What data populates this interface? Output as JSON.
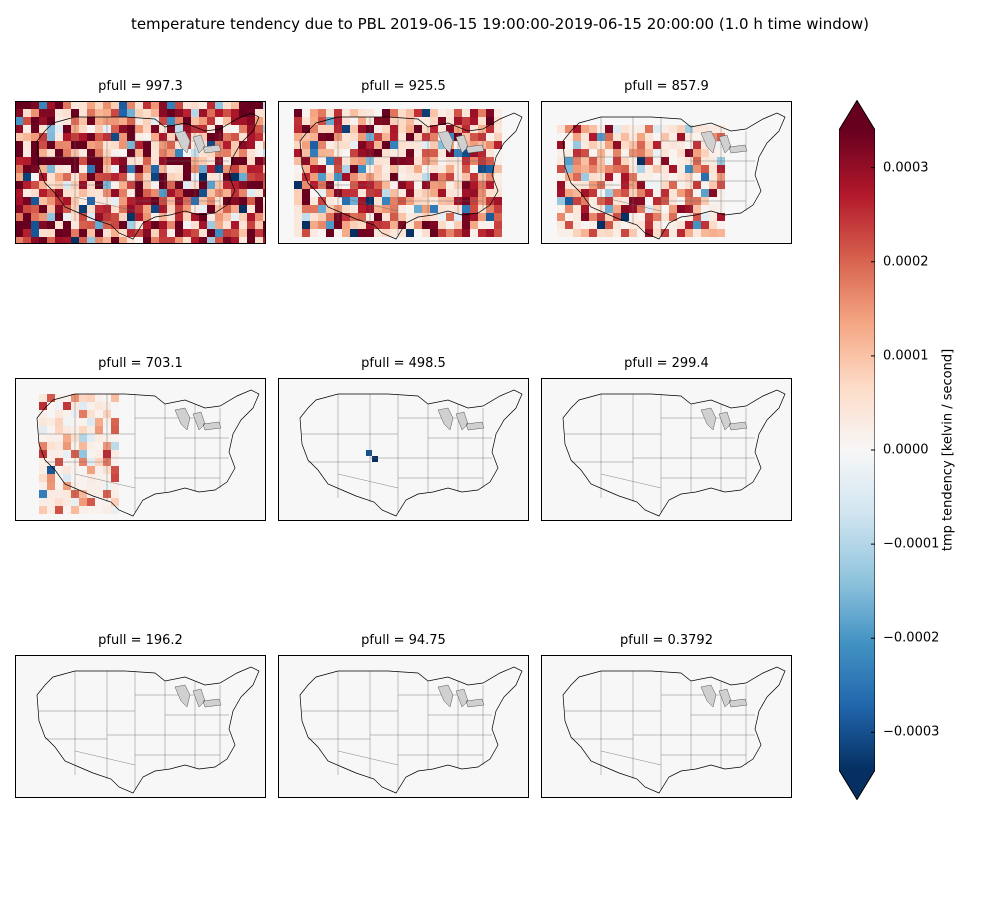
{
  "figure": {
    "title": "temperature tendency due to PBL 2019-06-15 19:00:00-2019-06-15 20:00:00 (1.0 h time window)"
  },
  "chart_data": {
    "type": "heatmap",
    "title": "temperature tendency due to PBL 2019-06-15 19:00:00-2019-06-15 20:00:00 (1.0 h time window)",
    "colormap": "RdBu_r",
    "vmin": -0.00034,
    "vmax": 0.00034,
    "colorbar": {
      "label": "tmp tendency [kelvin / second]",
      "extend": "both",
      "ticks": [
        0.0003,
        0.0002,
        0.0001,
        0.0,
        -0.0001,
        -0.0002,
        -0.0003
      ],
      "tick_labels": [
        "0.0003",
        "0.0002",
        "0.0001",
        "0.0000",
        "−0.0001",
        "−0.0002",
        "−0.0003"
      ]
    },
    "map_region": "contiguous United States",
    "panels": [
      {
        "title": "pfull = 997.3",
        "pfull": 997.3,
        "activity": 1.0
      },
      {
        "title": "pfull = 925.5",
        "pfull": 925.5,
        "activity": 0.85
      },
      {
        "title": "pfull = 857.9",
        "pfull": 857.9,
        "activity": 0.6
      },
      {
        "title": "pfull = 703.1",
        "pfull": 703.1,
        "activity": 0.3
      },
      {
        "title": "pfull = 498.5",
        "pfull": 498.5,
        "activity": 0.02
      },
      {
        "title": "pfull = 299.4",
        "pfull": 299.4,
        "activity": 0.0
      },
      {
        "title": "pfull = 196.2",
        "pfull": 196.2,
        "activity": 0.0
      },
      {
        "title": "pfull = 94.75",
        "pfull": 94.75,
        "activity": 0.0
      },
      {
        "title": "pfull = 0.3792",
        "pfull": 0.3792,
        "activity": 0.0
      }
    ]
  }
}
